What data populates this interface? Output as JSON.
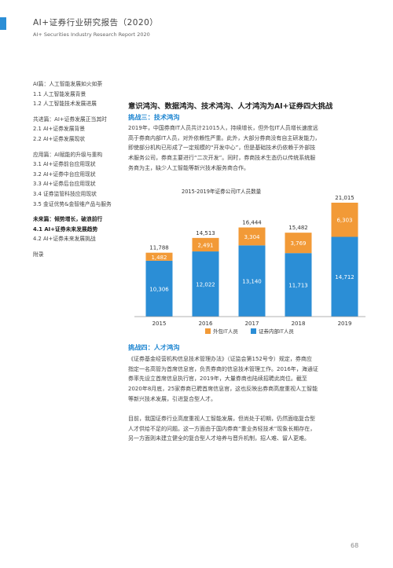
{
  "header": {
    "title": "AI+证券行业研究报告（2020）",
    "subtitle": "AI+ Securities Industry Research Report 2020"
  },
  "toc": [
    {
      "text": "AI篇：人工智能发展如火如荼",
      "bold": false
    },
    {
      "text": "1.1 人工智能发展背景",
      "bold": false
    },
    {
      "text": "1.2 人工智能技术发展进展",
      "bold": false,
      "gap_after": true
    },
    {
      "text": "共进篇：AI+证券发展正当其时",
      "bold": false
    },
    {
      "text": "2.1 AI+证券发展背景",
      "bold": false
    },
    {
      "text": "2.2 AI+证券发展现状",
      "bold": false,
      "gap_after": true
    },
    {
      "text": "应用篇：AI赋能的升级与重构",
      "bold": false
    },
    {
      "text": "3.1 AI+证券前台应用现状",
      "bold": false
    },
    {
      "text": "3.2 AI+证券中台应用现状",
      "bold": false
    },
    {
      "text": "3.3 AI+证券后台应用现状",
      "bold": false
    },
    {
      "text": "3.4 证券监管科技应用现状",
      "bold": false
    },
    {
      "text": "3.5 金证优势&金智维产品与服务",
      "bold": false,
      "gap_after": true
    },
    {
      "text": "未来篇：倾势增长，破浪前行",
      "bold": true
    },
    {
      "text": "4.1 AI+证券未来发展趋势",
      "bold": true
    },
    {
      "text": "4.2 AI+证券未来发展挑战",
      "bold": false,
      "gap_after": true
    },
    {
      "text": "附录",
      "bold": false
    }
  ],
  "main_heading": "意识鸿沟、数据鸿沟、技术鸿沟、人才鸿沟为AI+证券四大挑战",
  "section3": {
    "heading": "挑战三：技术鸿沟",
    "lines": [
      "2019年，中国券商IT人员共计21015人，持续增长，但外包IT人员增长速度远",
      "高于券商内部IT人员，对外依赖性严重。此外，大部分券商没有自主研发能力，",
      "即使部分机构已形成了一定规模的“开发中心”，但是基础技术仍依赖于外部技",
      "术服务公司，券商主要进行“二次开发”。同时，券商技术生态仍以传统系统服",
      "务商为主，缺少人工智能等新兴技术服务商合作。"
    ]
  },
  "chart_data": {
    "type": "bar",
    "stacked": true,
    "title": "2015-2019年证券公司IT人员数量",
    "categories": [
      "2015",
      "2016",
      "2017",
      "2018",
      "2019"
    ],
    "series": [
      {
        "name": "证券内部IT人员",
        "values": [
          10306,
          12022,
          13140,
          11713,
          14712
        ],
        "color": "#2b8ed6"
      },
      {
        "name": "外包IT人员",
        "values": [
          1482,
          2491,
          3304,
          3769,
          6303
        ],
        "color": "#f29a37"
      }
    ],
    "totals": [
      11788,
      14513,
      16444,
      15482,
      21015
    ],
    "legend_position": "bottom",
    "grid": false
  },
  "section4": {
    "heading": "挑战四：人才鸿沟",
    "p1": [
      "《证券基金经营机构信息技术管理办法》（证监会第152号令）规定，券商应",
      "指定一名高管为首席信息官，负责券商的信息技术管理工作。2016年，海通证",
      "券率先设立首席信息执行官，2019年，大量券商也陆续招聘此岗位。截至",
      "2020年8月底，25家券商已聘首席信息官，这也反映出券商高度重视人工智能",
      "等新兴技术发展，引进复合型人才。"
    ],
    "p2": [
      "目前，我国证券行业高度重视人工智能发展，但尚处于初期，仍然面临复合型",
      "人才供给不足的问题。这一方面由于国内券商“重业务轻技术”现象长期存在，",
      "另一方面则未建立健全的复合型人才培养与晋升机制，招人难、留人更难。"
    ]
  },
  "page_number": "68",
  "colors": {
    "accent_blue": "#2b8ed6",
    "accent_orange": "#f29a37"
  }
}
